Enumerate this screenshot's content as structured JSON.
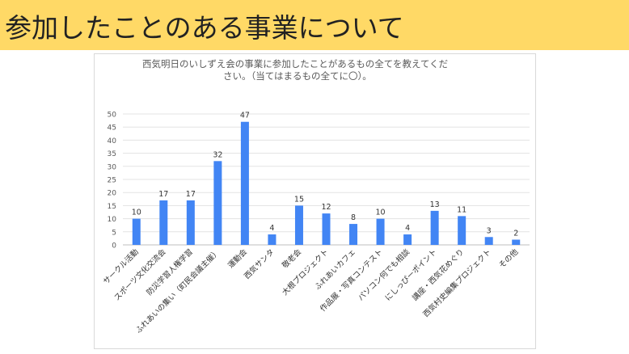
{
  "page": {
    "title": "参加したことのある事業について"
  },
  "chart_data": {
    "type": "bar",
    "title": "西気明日のいしずえ会の事業に参加したことがあるもの全てを教えてください。（当てはまるもの全てに〇）。",
    "title_lines": [
      "西気明日のいしずえ会の事業に参加したことがあるもの全てを教えてくだ",
      "さい。（当てはまるもの全てに〇）。"
    ],
    "categories": [
      "サークル活動",
      "スポーツ文化交流会",
      "防災学習人権学習",
      "ふれあいの集い（町民会議主催）",
      "運動会",
      "西気サンタ",
      "敬老会",
      "大根プロジェクト",
      "ふれあいカフェ",
      "作品展・写真コンテスト",
      "パソコン何でも相談",
      "にしっぴーポイント",
      "講座・西気花めぐり",
      "西気村史編集プロジェクト",
      "その他"
    ],
    "values": [
      10,
      17,
      17,
      32,
      47,
      4,
      15,
      12,
      8,
      10,
      4,
      13,
      11,
      3,
      2
    ],
    "ylim": [
      0,
      50
    ],
    "yticks": [
      0,
      5,
      10,
      15,
      20,
      25,
      30,
      35,
      40,
      45,
      50
    ],
    "grid": true,
    "bar_color": "#4285f4",
    "data_labels": true
  }
}
